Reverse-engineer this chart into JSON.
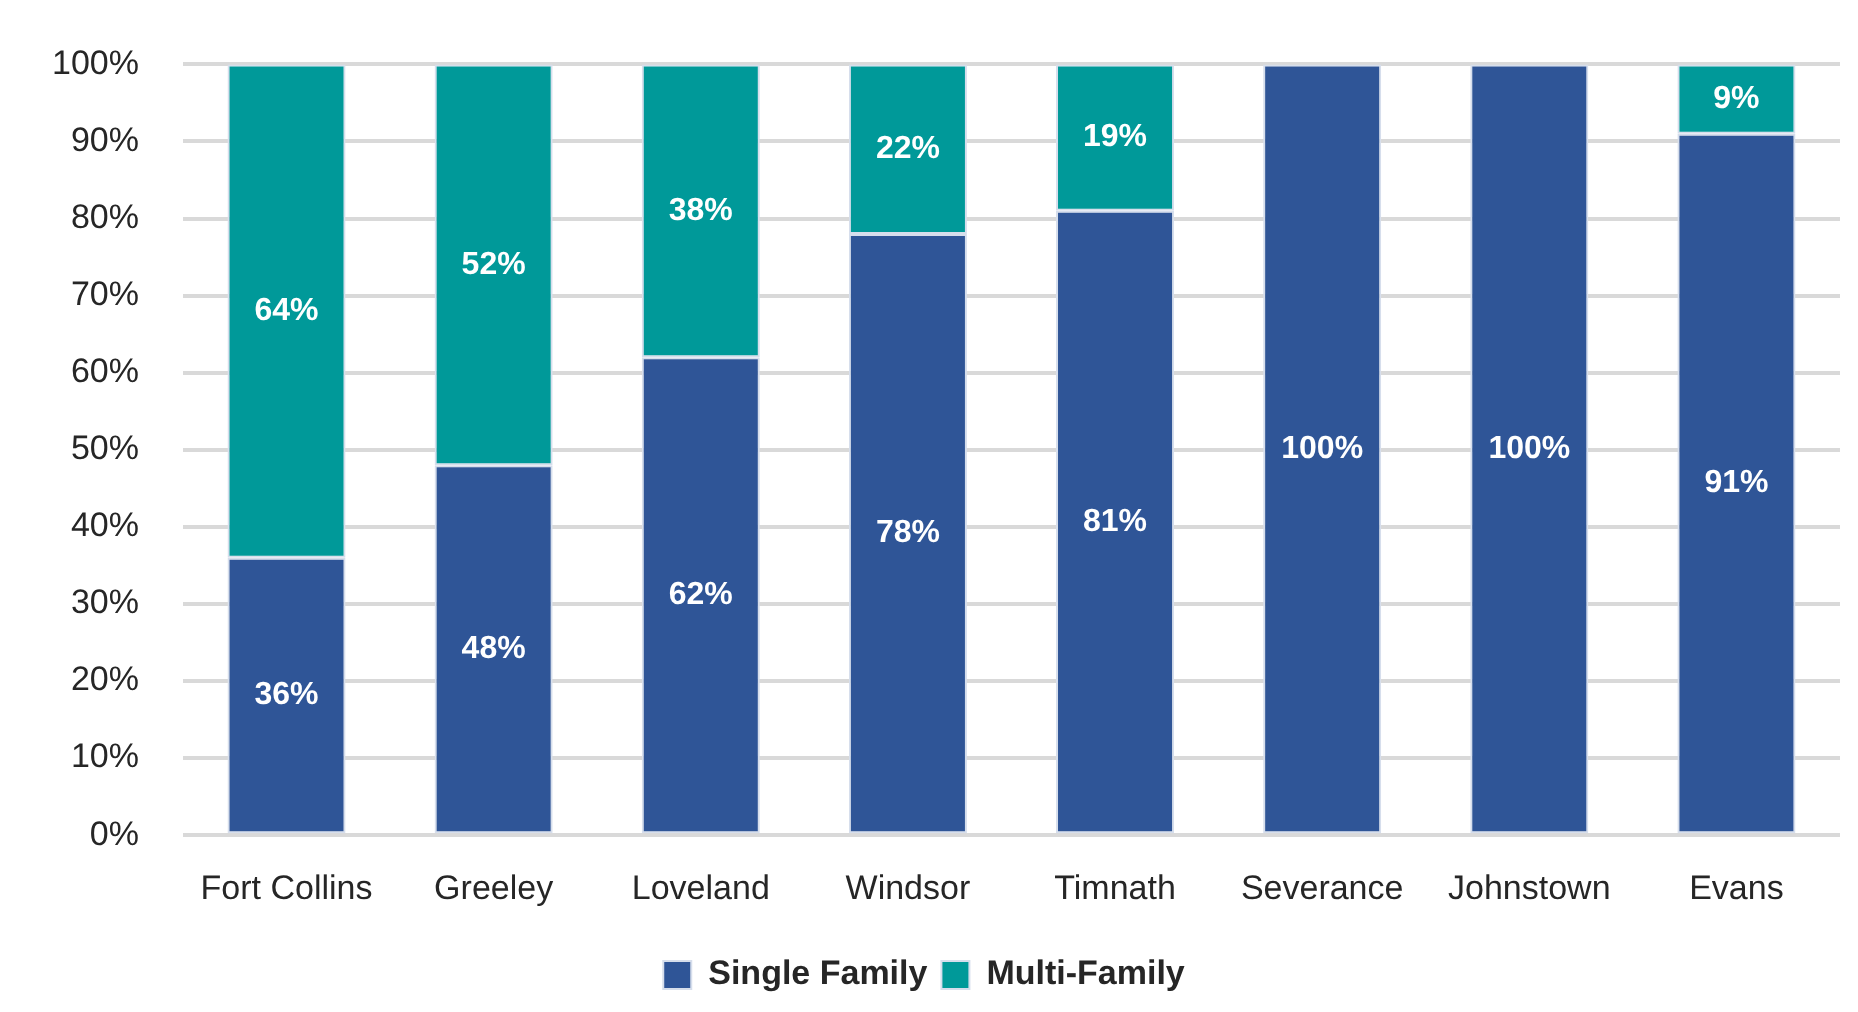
{
  "chart_data": {
    "type": "bar",
    "stacked": true,
    "categories": [
      "Fort Collins",
      "Greeley",
      "Loveland",
      "Windsor",
      "Timnath",
      "Severance",
      "Johnstown",
      "Evans"
    ],
    "series": [
      {
        "name": "Single Family",
        "color": "#2f5597",
        "values": [
          36,
          48,
          62,
          78,
          81,
          100,
          100,
          91
        ],
        "value_labels": [
          "36%",
          "48%",
          "62%",
          "78%",
          "81%",
          "100%",
          "100%",
          "91%"
        ]
      },
      {
        "name": "Multi-Family",
        "color": "#009999",
        "values": [
          64,
          52,
          38,
          22,
          19,
          0,
          0,
          9
        ],
        "value_labels": [
          "64%",
          "52%",
          "38%",
          "22%",
          "19%",
          null,
          null,
          "9%"
        ]
      }
    ],
    "ylim": [
      0,
      100
    ],
    "yticks": [
      {
        "value": 0,
        "label": "0%"
      },
      {
        "value": 10,
        "label": "10%"
      },
      {
        "value": 20,
        "label": "20%"
      },
      {
        "value": 30,
        "label": "30%"
      },
      {
        "value": 40,
        "label": "40%"
      },
      {
        "value": 50,
        "label": "50%"
      },
      {
        "value": 60,
        "label": "60%"
      },
      {
        "value": 70,
        "label": "70%"
      },
      {
        "value": 80,
        "label": "80%"
      },
      {
        "value": 90,
        "label": "90%"
      },
      {
        "value": 100,
        "label": "100%"
      }
    ],
    "grid": "y",
    "legend": "bottom"
  }
}
